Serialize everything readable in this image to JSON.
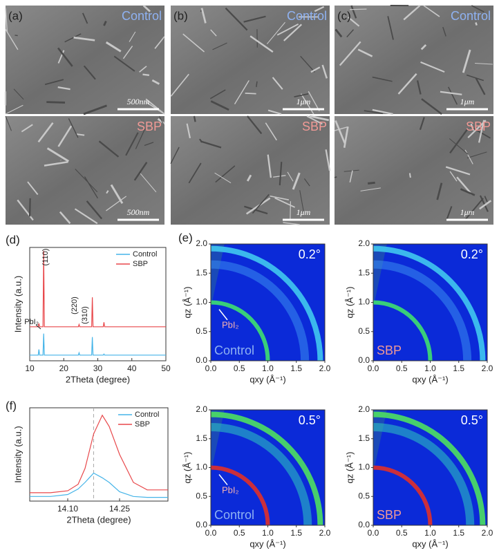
{
  "sem_panels": [
    {
      "label": "(a)",
      "top_sample": "Control",
      "bottom_sample": "SBP",
      "top_scale": "500nm",
      "bottom_scale": "500nm"
    },
    {
      "label": "(b)",
      "top_sample": "Control",
      "bottom_sample": "SBP",
      "top_scale": "1μm",
      "bottom_scale": "1μm"
    },
    {
      "label": "(c)",
      "top_sample": "Control",
      "bottom_sample": "SBP",
      "top_scale": "1μm",
      "bottom_scale": "1μm"
    }
  ],
  "chart_data": [
    {
      "type": "line",
      "panel_label": "(d)",
      "xlabel": "2Theta (degree)",
      "ylabel": "Intensity (a.u.)",
      "xlim": [
        10,
        50
      ],
      "xticks": [
        10,
        20,
        30,
        40,
        50
      ],
      "ylim": [
        0,
        100
      ],
      "annotations": [
        "(110)",
        "(220)",
        "(310)",
        "PbI₂"
      ],
      "x": [
        10,
        12.5,
        12.7,
        12.9,
        13.9,
        14.1,
        14.3,
        24.3,
        24.5,
        24.7,
        28.2,
        28.4,
        28.6,
        31.6,
        31.8,
        32,
        50
      ],
      "series": [
        {
          "name": "Control",
          "color": "#45b4e8",
          "values": [
            5,
            5,
            10,
            5,
            5,
            24,
            5,
            5,
            7,
            5,
            5,
            21,
            5,
            5,
            6,
            5,
            5
          ]
        },
        {
          "name": "SBP",
          "color": "#e8474a",
          "values": [
            30,
            30,
            33,
            30,
            30,
            97,
            30,
            30,
            32,
            30,
            30,
            56,
            30,
            30,
            34,
            30,
            30
          ]
        }
      ]
    },
    {
      "type": "line",
      "panel_label": "(f)",
      "xlabel": "2Theta (degree)",
      "ylabel": "Intensity (a.u.)",
      "xlim": [
        13.99,
        14.39
      ],
      "xticks": [
        {
          "value": 14.1,
          "label": "14.10"
        },
        {
          "value": 14.25,
          "label": "14.25"
        }
      ],
      "ylim": [
        0,
        1
      ],
      "ref_line_x": 14.175,
      "x": [
        13.99,
        14.05,
        14.1,
        14.13,
        14.15,
        14.175,
        14.2,
        14.22,
        14.25,
        14.29,
        14.33,
        14.39
      ],
      "series": [
        {
          "name": "Control",
          "color": "#45b4e8",
          "values": [
            0.05,
            0.05,
            0.07,
            0.13,
            0.2,
            0.3,
            0.25,
            0.2,
            0.1,
            0.05,
            0.04,
            0.04
          ]
        },
        {
          "name": "SBP",
          "color": "#e8474a",
          "values": [
            0.09,
            0.09,
            0.11,
            0.18,
            0.35,
            0.72,
            0.92,
            0.8,
            0.5,
            0.2,
            0.12,
            0.12
          ]
        }
      ]
    },
    {
      "type": "map",
      "panel_label": "(e)",
      "angle": "0.2°",
      "sample": "Control",
      "sample_color": "#8fb2f2",
      "annotation": "PbI₂",
      "xlabel": "qxy (Å⁻¹)",
      "ylabel": "qz (Å⁻¹)",
      "xlim": [
        0,
        2
      ],
      "ylim": [
        0,
        2
      ],
      "xticks": [
        {
          "value": 0,
          "label": "0.0"
        },
        {
          "value": 0.5,
          "label": "0.5"
        },
        {
          "value": 1,
          "label": "1.0"
        },
        {
          "value": 1.5,
          "label": "1.5"
        },
        {
          "value": 2,
          "label": "2.0"
        }
      ],
      "yticks": [
        {
          "value": 0,
          "label": "0.0"
        },
        {
          "value": 0.5,
          "label": "0.5"
        },
        {
          "value": 1,
          "label": "1.0"
        },
        {
          "value": 1.5,
          "label": "1.5"
        },
        {
          "value": 2,
          "label": "2.0"
        }
      ],
      "rings": [
        {
          "q": 1.0,
          "color": "#3ee070"
        },
        {
          "q": 1.65,
          "color": "#3a8cf0"
        },
        {
          "q": 1.92,
          "color": "#40c8f0"
        }
      ]
    },
    {
      "type": "map",
      "angle": "0.2°",
      "sample": "SBP",
      "sample_color": "#f09a96",
      "xlabel": "qxy (Å⁻¹)",
      "ylabel": "qz (Å⁻¹)",
      "xlim": [
        0,
        2
      ],
      "ylim": [
        0,
        2
      ],
      "xticks": [
        {
          "value": 0,
          "label": "0.0"
        },
        {
          "value": 0.5,
          "label": "0.5"
        },
        {
          "value": 1,
          "label": "1.0"
        },
        {
          "value": 1.5,
          "label": "1.5"
        },
        {
          "value": 2,
          "label": "2.0"
        }
      ],
      "yticks": [
        {
          "value": 0,
          "label": "0.0"
        },
        {
          "value": 0.5,
          "label": "0.5"
        },
        {
          "value": 1,
          "label": "1.0"
        },
        {
          "value": 1.5,
          "label": "1.5"
        },
        {
          "value": 2,
          "label": "2.0"
        }
      ],
      "rings": [
        {
          "q": 1.0,
          "color": "#3ee070"
        },
        {
          "q": 1.65,
          "color": "#3a8cf0"
        },
        {
          "q": 1.92,
          "color": "#40c8f0"
        }
      ]
    },
    {
      "type": "map",
      "angle": "0.5°",
      "sample": "Control",
      "sample_color": "#8fb2f2",
      "annotation": "PbI₂",
      "xlabel": "qxy (Å⁻¹)",
      "ylabel": "qz (Å⁻¹)",
      "xlim": [
        0,
        2
      ],
      "ylim": [
        0,
        2
      ],
      "xticks": [
        {
          "value": 0,
          "label": "0.0"
        },
        {
          "value": 0.5,
          "label": "0.5"
        },
        {
          "value": 1,
          "label": "1.0"
        },
        {
          "value": 1.5,
          "label": "1.5"
        },
        {
          "value": 2,
          "label": "2.0"
        }
      ],
      "yticks": [
        {
          "value": 0,
          "label": "0.0"
        },
        {
          "value": 0.5,
          "label": "0.5"
        },
        {
          "value": 1,
          "label": "1.0"
        },
        {
          "value": 1.5,
          "label": "1.5"
        },
        {
          "value": 2,
          "label": "2.0"
        }
      ],
      "rings": [
        {
          "q": 1.0,
          "color": "#e0302a"
        },
        {
          "q": 1.7,
          "color": "#30c8c0"
        },
        {
          "q": 1.92,
          "color": "#4ee060"
        }
      ]
    },
    {
      "type": "map",
      "angle": "0.5°",
      "sample": "SBP",
      "sample_color": "#f09a96",
      "xlabel": "qxy (Å⁻¹)",
      "ylabel": "qz (Å⁻¹)",
      "xlim": [
        0,
        2
      ],
      "ylim": [
        0,
        2
      ],
      "xticks": [
        {
          "value": 0,
          "label": "0.0"
        },
        {
          "value": 0.5,
          "label": "0.5"
        },
        {
          "value": 1,
          "label": "1.0"
        },
        {
          "value": 1.5,
          "label": "1.5"
        },
        {
          "value": 2,
          "label": "2.0"
        }
      ],
      "yticks": [
        {
          "value": 0,
          "label": "0.0"
        },
        {
          "value": 0.5,
          "label": "0.5"
        },
        {
          "value": 1,
          "label": "1.0"
        },
        {
          "value": 1.5,
          "label": "1.5"
        },
        {
          "value": 2,
          "label": "2.0"
        }
      ],
      "rings": [
        {
          "q": 1.0,
          "color": "#e0302a"
        },
        {
          "q": 1.7,
          "color": "#30c8c0"
        },
        {
          "q": 1.92,
          "color": "#4ee060"
        }
      ]
    }
  ]
}
